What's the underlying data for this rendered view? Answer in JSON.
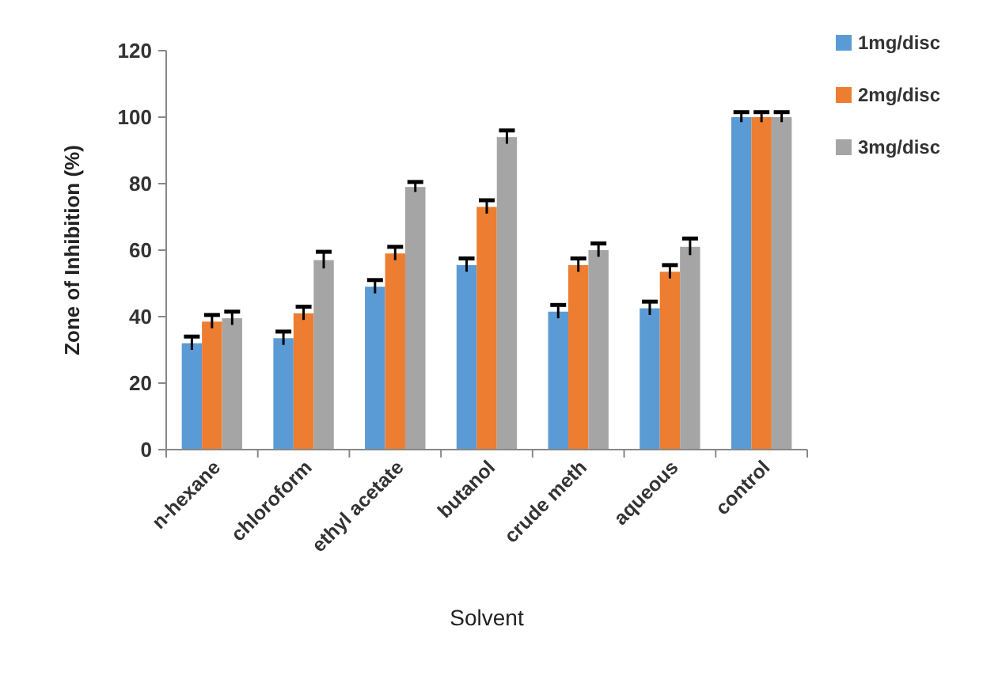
{
  "chart_data": {
    "type": "bar",
    "xlabel": "Solvent",
    "ylabel": "Zone of Inhibition (%)",
    "categories": [
      "n-hexane",
      "chloroform",
      "ethyl acetate",
      "butanol",
      "crude meth",
      "aqueous",
      "control"
    ],
    "series": [
      {
        "name": "1mg/disc",
        "color": "#5b9bd5",
        "values": [
          32,
          33.5,
          49,
          55.5,
          41.5,
          42.5,
          100
        ],
        "errors": [
          2,
          2,
          2,
          2,
          2,
          2,
          1.5
        ]
      },
      {
        "name": "2mg/disc",
        "color": "#ed7d31",
        "values": [
          38.5,
          41,
          59,
          73,
          55.5,
          53.5,
          100
        ],
        "errors": [
          2,
          2,
          2,
          2,
          2,
          2,
          1.5
        ]
      },
      {
        "name": "3mg/disc",
        "color": "#a5a5a5",
        "values": [
          39.5,
          57,
          79,
          94,
          60,
          61,
          100
        ],
        "errors": [
          2,
          2.5,
          1.5,
          2,
          2,
          2.5,
          1.5
        ]
      }
    ],
    "ylim": [
      0,
      120
    ],
    "yticks": [
      0,
      20,
      40,
      60,
      80,
      100,
      120
    ],
    "grid": false,
    "legend": "top right"
  }
}
